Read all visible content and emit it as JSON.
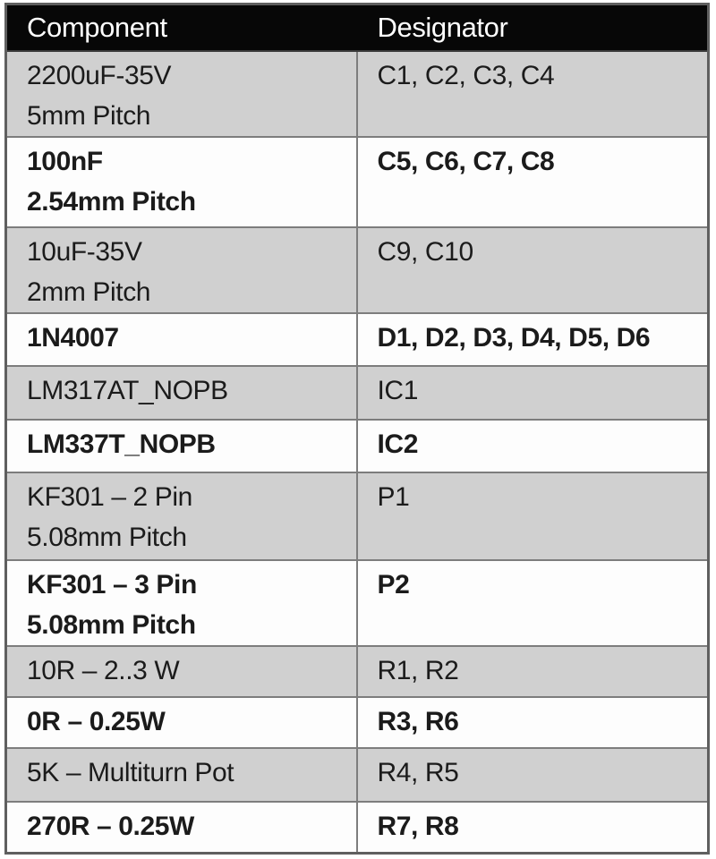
{
  "page": {
    "background_color": "#ffffff"
  },
  "table": {
    "columns": {
      "component": "Component",
      "designator": "Designator"
    },
    "colors": {
      "header_background": "#070707",
      "header_text": "#ffffff",
      "shaded_row_background": "#d0d0d0",
      "plain_row_background": "#fdfdfd",
      "border": "#7d7d7d",
      "outer_border": "#5f5f5f",
      "body_text": "#1b1b1b"
    },
    "rows": [
      {
        "component": "2200uF-35V\n5mm Pitch",
        "designator": "C1, C2, C3, C4"
      },
      {
        "component": "100nF\n2.54mm Pitch",
        "designator": "C5, C6, C7, C8"
      },
      {
        "component": "10uF-35V\n2mm Pitch",
        "designator": "C9, C10"
      },
      {
        "component": "1N4007",
        "designator": "D1, D2, D3, D4, D5, D6"
      },
      {
        "component": "LM317AT_NOPB",
        "designator": "IC1"
      },
      {
        "component": "LM337T_NOPB",
        "designator": "IC2"
      },
      {
        "component": "KF301 – 2 Pin\n5.08mm Pitch",
        "designator": "P1"
      },
      {
        "component": "KF301 – 3 Pin\n5.08mm Pitch",
        "designator": "P2"
      },
      {
        "component": "10R – 2..3 W",
        "designator": "R1, R2"
      },
      {
        "component": "0R – 0.25W",
        "designator": "R3, R6"
      },
      {
        "component": "5K – Multiturn Pot",
        "designator": "R4, R5"
      },
      {
        "component": "270R – 0.25W",
        "designator": "R7, R8"
      }
    ]
  }
}
